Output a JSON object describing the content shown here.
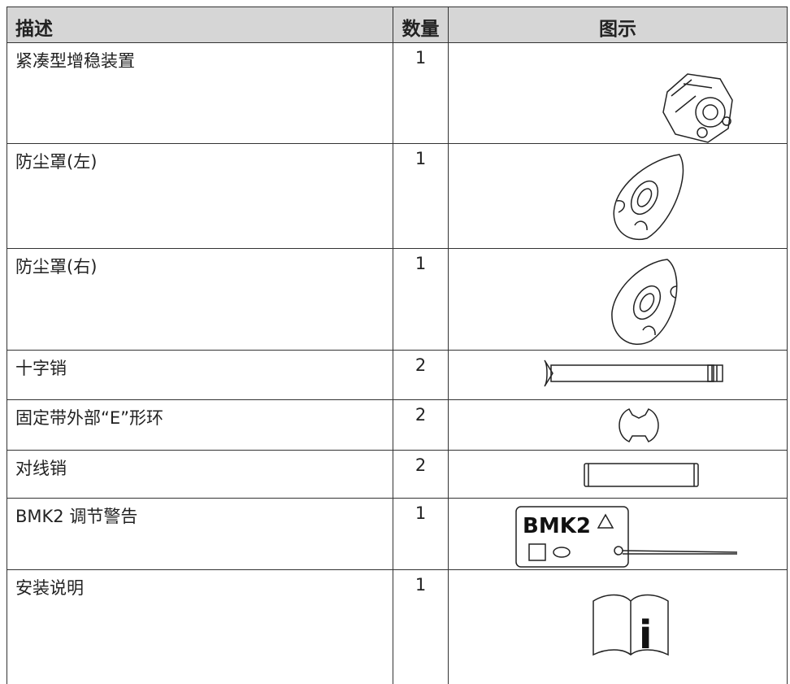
{
  "table": {
    "header": [
      "描述",
      "数量",
      "图示"
    ],
    "rows": [
      {
        "description": "紧凑型增稳装置",
        "quantity": 1
      },
      {
        "description": "防尘罩(左)",
        "quantity": 1
      },
      {
        "description": "防尘罩(右)",
        "quantity": 1
      },
      {
        "description": "十字销",
        "quantity": 2
      },
      {
        "description": "固定带外部“E”形环",
        "quantity": 2
      },
      {
        "description": "对线销",
        "quantity": 2
      },
      {
        "description": "BMK2 调节警告",
        "quantity": 1,
        "tag_label": "BMK2"
      },
      {
        "description": "安装说明",
        "quantity": 1
      }
    ]
  }
}
